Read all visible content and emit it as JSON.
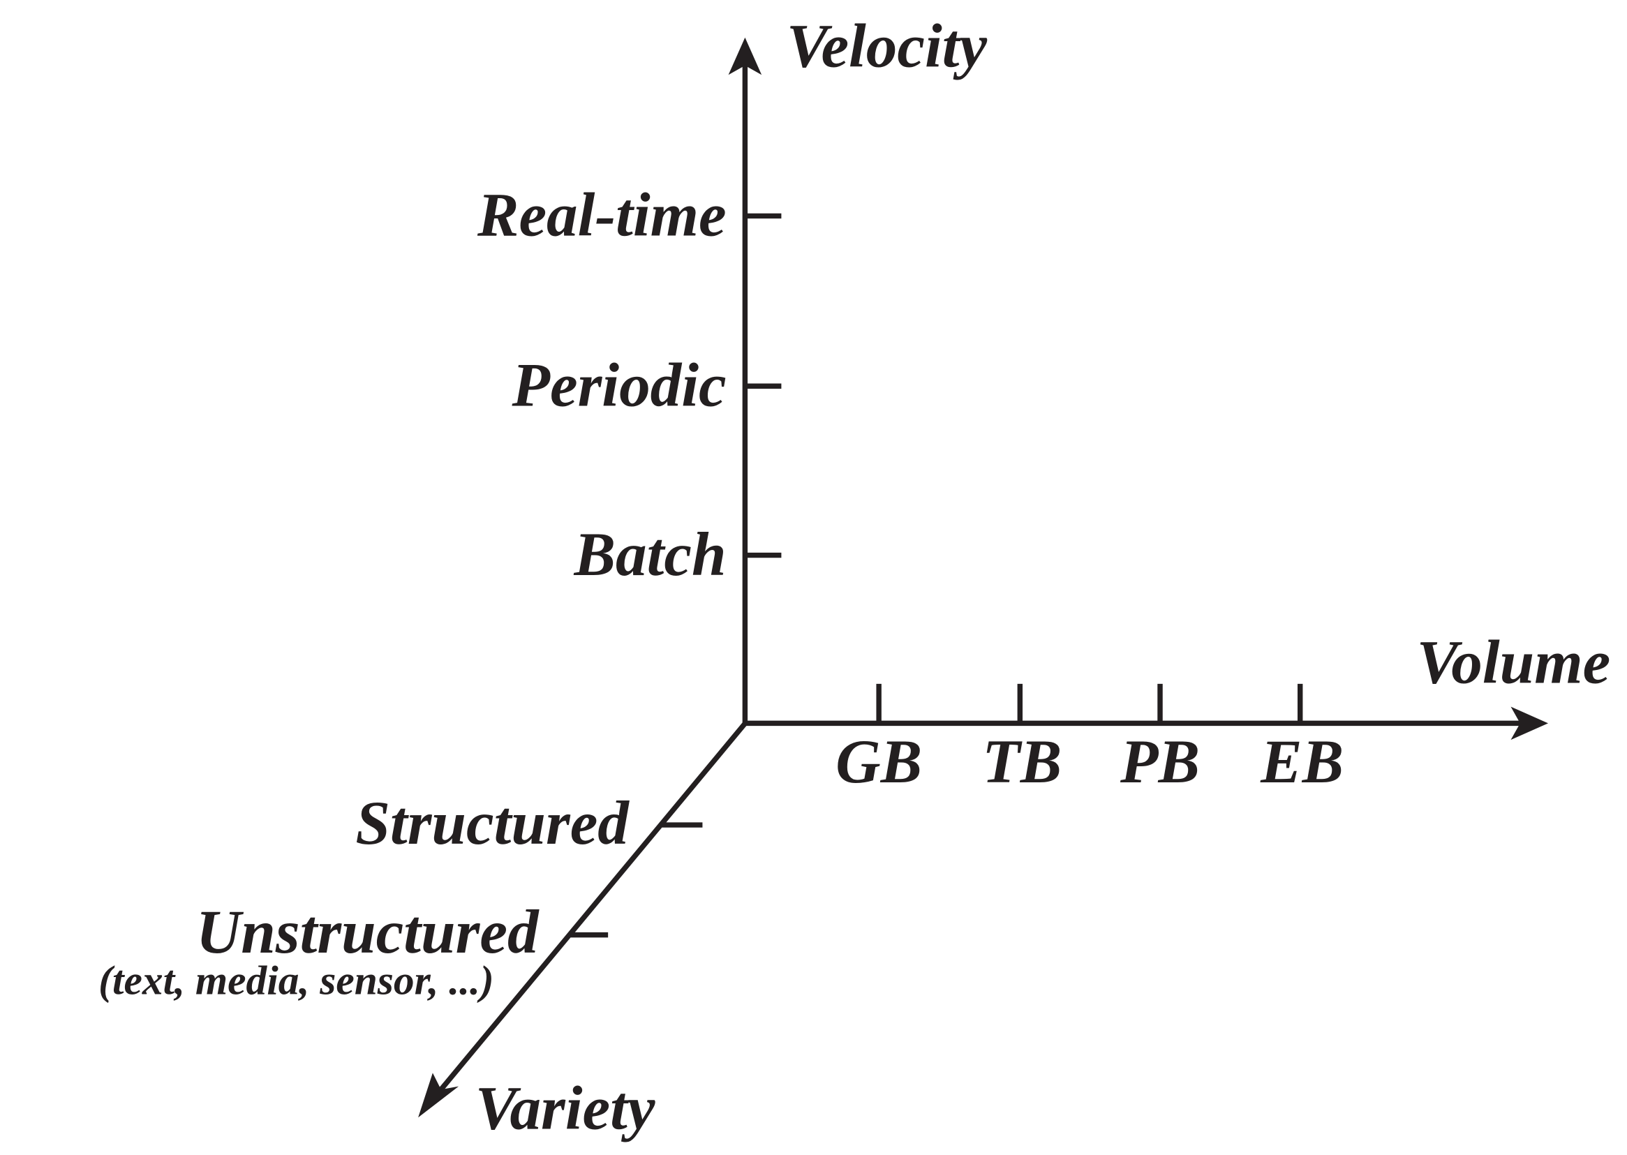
{
  "axes": {
    "velocity": {
      "label": "Velocity",
      "ticks": [
        "Batch",
        "Periodic",
        "Real-time"
      ]
    },
    "volume": {
      "label": "Volume",
      "ticks": [
        "GB",
        "TB",
        "PB",
        "EB"
      ]
    },
    "variety": {
      "label": "Variety",
      "ticks": [
        "Structured",
        "Unstructured"
      ],
      "note": "(text, media, sensor, ...)"
    }
  }
}
